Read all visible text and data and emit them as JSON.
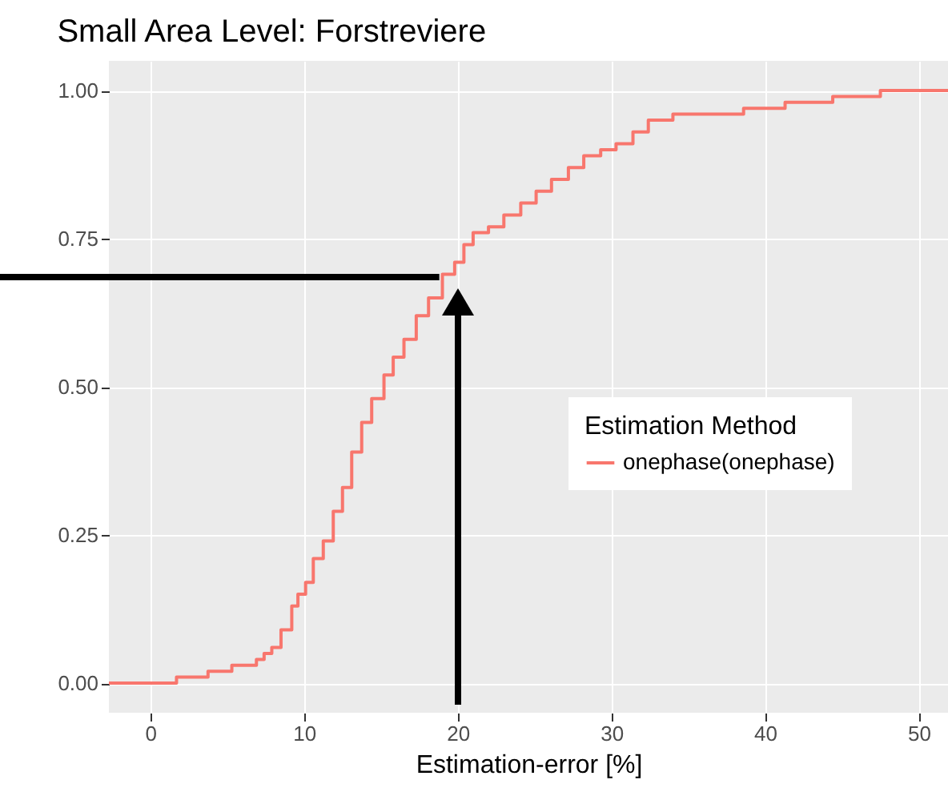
{
  "chart_data": {
    "type": "step",
    "title": "Small Area Level: Forstreviere",
    "xlabel": "Estimation-error [%]",
    "legend_title": "Estimation Method",
    "legend": "right",
    "grid": true,
    "xlim": [
      -2.7,
      51.9
    ],
    "xticks": [
      0,
      10,
      20,
      30,
      40,
      50
    ],
    "ylim": [
      -0.05,
      1.05
    ],
    "yticks": [
      {
        "value": 0,
        "label": "0.00"
      },
      {
        "value": 0.25,
        "label": "0.25"
      },
      {
        "value": 0.5,
        "label": "0.50"
      },
      {
        "value": 0.75,
        "label": "0.75"
      },
      {
        "value": 1,
        "label": "1.00"
      }
    ],
    "series": [
      {
        "name": "onephase(onephase)",
        "color": "#f8766d",
        "x": [
          -2.7,
          1.1,
          1.7,
          2.5,
          3.75,
          5.3,
          6.9,
          7.4,
          7.9,
          8.5,
          9.2,
          9.6,
          10.1,
          10.6,
          11.25,
          11.9,
          12.5,
          13.1,
          13.75,
          14.4,
          15.2,
          15.8,
          16.5,
          17.3,
          18.1,
          19.0,
          19.8,
          20.4,
          21.0,
          22.0,
          23.0,
          24.1,
          25.1,
          26.1,
          27.2,
          28.2,
          29.3,
          30.3,
          31.4,
          32.4,
          34.0,
          37.1,
          38.6,
          41.3,
          44.4,
          47.5,
          51.9
        ],
        "values": [
          0,
          0,
          0.01,
          0.01,
          0.02,
          0.03,
          0.04,
          0.05,
          0.06,
          0.09,
          0.13,
          0.15,
          0.17,
          0.21,
          0.24,
          0.29,
          0.33,
          0.39,
          0.44,
          0.48,
          0.52,
          0.55,
          0.58,
          0.62,
          0.65,
          0.69,
          0.71,
          0.74,
          0.76,
          0.77,
          0.79,
          0.81,
          0.83,
          0.85,
          0.87,
          0.89,
          0.9,
          0.91,
          0.93,
          0.95,
          0.96,
          0.96,
          0.97,
          0.98,
          0.99,
          1,
          1
        ]
      },
      {
        "color": "#000000",
        "x": [
          -2.7,
          18.8
        ],
        "values": [
          0.685,
          0.685
        ]
      }
    ]
  }
}
